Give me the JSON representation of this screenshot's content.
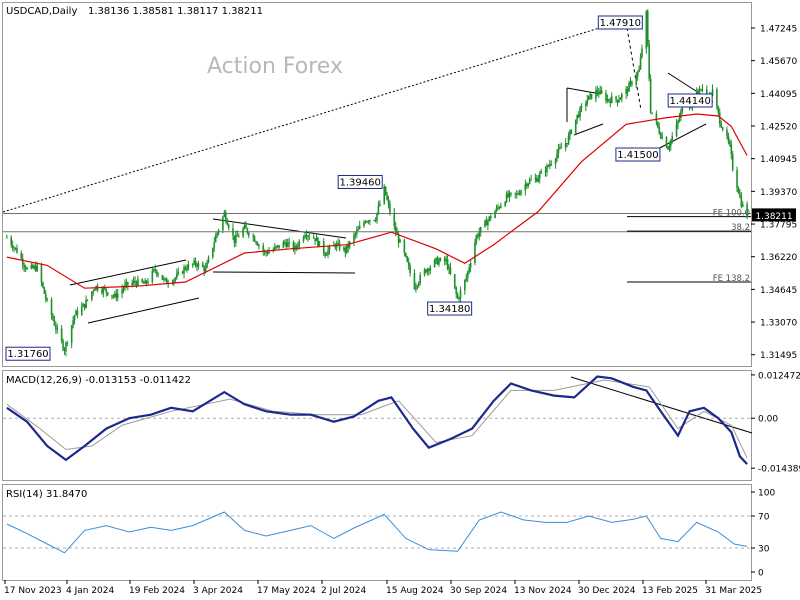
{
  "chart_data": [
    {
      "type": "candlestick",
      "panel": "price",
      "header": {
        "symbol": "USDCAD,Daily",
        "ohlc": "1.38136 1.38581 1.38117 1.38211"
      },
      "watermark": "Action Forex",
      "ylim": [
        1.31,
        1.484
      ],
      "y_ticks": [
        "1.47245",
        "1.45670",
        "1.44095",
        "1.42520",
        "1.40945",
        "1.39370",
        "1.37795",
        "1.36220",
        "1.34645",
        "1.33070",
        "1.31495"
      ],
      "x_ticks": [
        "17 Nov 2023",
        "4 Jan 2024",
        "19 Feb 2024",
        "3 Apr 2024",
        "17 May 2024",
        "2 Jul 2024",
        "15 Aug 2024",
        "30 Sep 2024",
        "13 Nov 2024",
        "30 Dec 2024",
        "13 Feb 2025",
        "31 Mar 2025"
      ],
      "current_price": "1.38211",
      "price_path": [
        [
          "2023-11-17",
          1.3715
        ],
        [
          "2023-11-24",
          1.365
        ],
        [
          "2023-12-01",
          1.356
        ],
        [
          "2023-12-08",
          1.357
        ],
        [
          "2023-12-14",
          1.342
        ],
        [
          "2023-12-22",
          1.326
        ],
        [
          "2023-12-27",
          1.3176
        ],
        [
          "2024-01-03",
          1.334
        ],
        [
          "2024-01-10",
          1.339
        ],
        [
          "2024-01-17",
          1.348
        ],
        [
          "2024-01-24",
          1.346
        ],
        [
          "2024-01-31",
          1.343
        ],
        [
          "2024-02-07",
          1.348
        ],
        [
          "2024-02-14",
          1.35
        ],
        [
          "2024-02-21",
          1.349
        ],
        [
          "2024-02-28",
          1.356
        ],
        [
          "2024-03-06",
          1.35
        ],
        [
          "2024-03-13",
          1.352
        ],
        [
          "2024-03-20",
          1.357
        ],
        [
          "2024-03-27",
          1.359
        ],
        [
          "2024-04-03",
          1.356
        ],
        [
          "2024-04-10",
          1.372
        ],
        [
          "2024-04-16",
          1.383
        ],
        [
          "2024-04-23",
          1.37
        ],
        [
          "2024-04-30",
          1.376
        ],
        [
          "2024-05-07",
          1.371
        ],
        [
          "2024-05-14",
          1.364
        ],
        [
          "2024-05-21",
          1.366
        ],
        [
          "2024-05-28",
          1.369
        ],
        [
          "2024-06-04",
          1.366
        ],
        [
          "2024-06-11",
          1.374
        ],
        [
          "2024-06-18",
          1.371
        ],
        [
          "2024-06-25",
          1.364
        ],
        [
          "2024-07-02",
          1.368
        ],
        [
          "2024-07-09",
          1.365
        ],
        [
          "2024-07-16",
          1.373
        ],
        [
          "2024-07-23",
          1.38
        ],
        [
          "2024-07-30",
          1.381
        ],
        [
          "2024-08-05",
          1.3946
        ],
        [
          "2024-08-12",
          1.376
        ],
        [
          "2024-08-19",
          1.363
        ],
        [
          "2024-08-26",
          1.348
        ],
        [
          "2024-09-03",
          1.356
        ],
        [
          "2024-09-10",
          1.36
        ],
        [
          "2024-09-17",
          1.36
        ],
        [
          "2024-09-25",
          1.3418
        ],
        [
          "2024-10-01",
          1.352
        ],
        [
          "2024-10-08",
          1.372
        ],
        [
          "2024-10-15",
          1.379
        ],
        [
          "2024-10-22",
          1.385
        ],
        [
          "2024-10-29",
          1.391
        ],
        [
          "2024-11-05",
          1.392
        ],
        [
          "2024-11-12",
          1.398
        ],
        [
          "2024-11-19",
          1.4
        ],
        [
          "2024-11-26",
          1.405
        ],
        [
          "2024-12-03",
          1.412
        ],
        [
          "2024-12-10",
          1.418
        ],
        [
          "2024-12-17",
          1.43
        ],
        [
          "2024-12-24",
          1.438
        ],
        [
          "2024-12-31",
          1.442
        ],
        [
          "2025-01-07",
          1.438
        ],
        [
          "2025-01-14",
          1.438
        ],
        [
          "2025-01-20",
          1.442
        ],
        [
          "2025-01-29",
          1.452
        ],
        [
          "2025-02-03",
          1.4791
        ],
        [
          "2025-02-06",
          1.433
        ],
        [
          "2025-02-13",
          1.421
        ],
        [
          "2025-02-18",
          1.415
        ],
        [
          "2025-02-24",
          1.425
        ],
        [
          "2025-03-03",
          1.44
        ],
        [
          "2025-03-06",
          1.434
        ],
        [
          "2025-03-12",
          1.444
        ],
        [
          "2025-03-18",
          1.438
        ],
        [
          "2025-03-21",
          1.442
        ],
        [
          "2025-03-26",
          1.428
        ],
        [
          "2025-04-02",
          1.415
        ],
        [
          "2025-04-04",
          1.405
        ],
        [
          "2025-04-08",
          1.394
        ],
        [
          "2025-04-10",
          1.388
        ],
        [
          "2025-04-14",
          1.382
        ]
      ],
      "series": [
        {
          "name": "",
          "color": "#e00000",
          "values": [
            [
              "2023-11-17",
              1.362
            ],
            [
              "2023-12-15",
              1.358
            ],
            [
              "2024-01-10",
              1.347
            ],
            [
              "2024-02-15",
              1.348
            ],
            [
              "2024-03-20",
              1.35
            ],
            [
              "2024-04-30",
              1.364
            ],
            [
              "2024-06-01",
              1.366
            ],
            [
              "2024-07-10",
              1.368
            ],
            [
              "2024-08-10",
              1.374
            ],
            [
              "2024-09-10",
              1.366
            ],
            [
              "2024-09-30",
              1.359
            ],
            [
              "2024-10-20",
              1.368
            ],
            [
              "2024-11-20",
              1.384
            ],
            [
              "2024-12-20",
              1.408
            ],
            [
              "2025-01-20",
              1.426
            ],
            [
              "2025-02-15",
              1.429
            ],
            [
              "2025-03-10",
              1.431
            ],
            [
              "2025-03-25",
              1.43
            ],
            [
              "2025-04-03",
              1.425
            ],
            [
              "2025-04-14",
              1.411
            ]
          ]
        }
      ],
      "annotations": [
        {
          "text": "1.47910",
          "x": "2025-02-03",
          "y": 1.4791
        },
        {
          "text": "1.39460",
          "x": "2024-08-05",
          "y": 1.3946
        },
        {
          "text": "1.34180",
          "x": "2024-09-25",
          "y": 1.3418
        },
        {
          "text": "1.31760",
          "x": "2023-12-27",
          "y": 1.3176
        },
        {
          "text": "1.41500",
          "x": "2025-02-18",
          "y": 1.415
        },
        {
          "text": "1.44140",
          "x": "2025-03-11",
          "y": 1.4414
        }
      ],
      "levels": [
        {
          "label": "FE 100.0",
          "y": 1.3815
        },
        {
          "label": "38.2",
          "y": 1.3745
        },
        {
          "label": "FE 138.2",
          "y": 1.35
        }
      ],
      "horizontal_lines": [
        1.383,
        1.3742
      ]
    },
    {
      "type": "line",
      "panel": "macd",
      "header": "MACD(12,26,9) -0.013153 -0.011422",
      "ylim": [
        -0.0175,
        0.0133
      ],
      "y_ticks": [
        "0.012472",
        "0.00",
        "-0.014389"
      ],
      "series": [
        {
          "name": "",
          "color": "#1b2a8a",
          "values": [
            [
              "2023-11-17",
              0.003
            ],
            [
              "2023-12-01",
              -0.001
            ],
            [
              "2023-12-15",
              -0.008
            ],
            [
              "2023-12-28",
              -0.012
            ],
            [
              "2024-01-10",
              -0.008
            ],
            [
              "2024-01-25",
              -0.003
            ],
            [
              "2024-02-10",
              0.0
            ],
            [
              "2024-02-25",
              0.001
            ],
            [
              "2024-03-10",
              0.003
            ],
            [
              "2024-03-25",
              0.002
            ],
            [
              "2024-04-16",
              0.0075
            ],
            [
              "2024-04-30",
              0.004
            ],
            [
              "2024-05-15",
              0.002
            ],
            [
              "2024-06-01",
              0.001
            ],
            [
              "2024-06-15",
              0.001
            ],
            [
              "2024-07-01",
              -0.001
            ],
            [
              "2024-07-15",
              0.0005
            ],
            [
              "2024-08-01",
              0.005
            ],
            [
              "2024-08-10",
              0.006
            ],
            [
              "2024-08-25",
              -0.003
            ],
            [
              "2024-09-05",
              -0.0085
            ],
            [
              "2024-09-20",
              -0.006
            ],
            [
              "2024-10-05",
              -0.003
            ],
            [
              "2024-10-20",
              0.005
            ],
            [
              "2024-11-01",
              0.01
            ],
            [
              "2024-11-15",
              0.008
            ],
            [
              "2024-12-01",
              0.0065
            ],
            [
              "2024-12-15",
              0.006
            ],
            [
              "2024-12-31",
              0.012
            ],
            [
              "2025-01-10",
              0.0115
            ],
            [
              "2025-01-25",
              0.009
            ],
            [
              "2025-02-03",
              0.008
            ],
            [
              "2025-02-13",
              0.002
            ],
            [
              "2025-02-25",
              -0.005
            ],
            [
              "2025-03-05",
              0.002
            ],
            [
              "2025-03-15",
              0.003
            ],
            [
              "2025-03-25",
              0.0
            ],
            [
              "2025-04-03",
              -0.004
            ],
            [
              "2025-04-09",
              -0.011
            ],
            [
              "2025-04-14",
              -0.0132
            ]
          ]
        },
        {
          "name": "",
          "color": "#9a9a9a",
          "values": [
            [
              "2023-11-17",
              0.004
            ],
            [
              "2023-12-10",
              -0.003
            ],
            [
              "2023-12-28",
              -0.009
            ],
            [
              "2024-01-15",
              -0.008
            ],
            [
              "2024-02-05",
              -0.002
            ],
            [
              "2024-03-10",
              0.002
            ],
            [
              "2024-04-20",
              0.0055
            ],
            [
              "2024-05-20",
              0.002
            ],
            [
              "2024-06-20",
              0.001
            ],
            [
              "2024-07-20",
              0.001
            ],
            [
              "2024-08-15",
              0.005
            ],
            [
              "2024-09-10",
              -0.007
            ],
            [
              "2024-10-05",
              -0.005
            ],
            [
              "2024-11-01",
              0.008
            ],
            [
              "2024-12-01",
              0.008
            ],
            [
              "2025-01-05",
              0.011
            ],
            [
              "2025-02-05",
              0.009
            ],
            [
              "2025-02-25",
              -0.003
            ],
            [
              "2025-03-15",
              0.002
            ],
            [
              "2025-04-03",
              -0.002
            ],
            [
              "2025-04-14",
              -0.0114
            ]
          ]
        }
      ]
    },
    {
      "type": "line",
      "panel": "rsi",
      "header": "RSI(14) 31.8470",
      "ylim": [
        0,
        100
      ],
      "y_ticks": [
        "100",
        "70",
        "30",
        "0"
      ],
      "series": [
        {
          "name": "",
          "color": "#3a8fd8",
          "values": [
            [
              "2023-11-17",
              60
            ],
            [
              "2023-12-01",
              48
            ],
            [
              "2023-12-15",
              35
            ],
            [
              "2023-12-27",
              24
            ],
            [
              "2024-01-10",
              52
            ],
            [
              "2024-01-25",
              58
            ],
            [
              "2024-02-10",
              50
            ],
            [
              "2024-02-25",
              56
            ],
            [
              "2024-03-10",
              52
            ],
            [
              "2024-03-25",
              58
            ],
            [
              "2024-04-16",
              75
            ],
            [
              "2024-04-30",
              52
            ],
            [
              "2024-05-15",
              45
            ],
            [
              "2024-06-01",
              52
            ],
            [
              "2024-06-15",
              58
            ],
            [
              "2024-07-01",
              42
            ],
            [
              "2024-07-15",
              55
            ],
            [
              "2024-08-05",
              72
            ],
            [
              "2024-08-20",
              42
            ],
            [
              "2024-09-05",
              28
            ],
            [
              "2024-09-25",
              26
            ],
            [
              "2024-10-10",
              65
            ],
            [
              "2024-10-25",
              75
            ],
            [
              "2024-11-10",
              65
            ],
            [
              "2024-11-25",
              62
            ],
            [
              "2024-12-10",
              62
            ],
            [
              "2024-12-25",
              70
            ],
            [
              "2025-01-10",
              62
            ],
            [
              "2025-01-25",
              66
            ],
            [
              "2025-02-03",
              70
            ],
            [
              "2025-02-13",
              42
            ],
            [
              "2025-02-25",
              38
            ],
            [
              "2025-03-10",
              62
            ],
            [
              "2025-03-25",
              50
            ],
            [
              "2025-04-05",
              35
            ],
            [
              "2025-04-14",
              32
            ]
          ]
        }
      ]
    }
  ],
  "colors": {
    "grid": "#c8c8c8",
    "axis_text": "#000000",
    "candle": "#1d8f2a",
    "ma": "#e00000",
    "macd": "#1b2a8a",
    "signal": "#9a9a9a",
    "rsi": "#3a8fd8",
    "trendline": "#000000",
    "watermark": "#b8b8b8"
  }
}
